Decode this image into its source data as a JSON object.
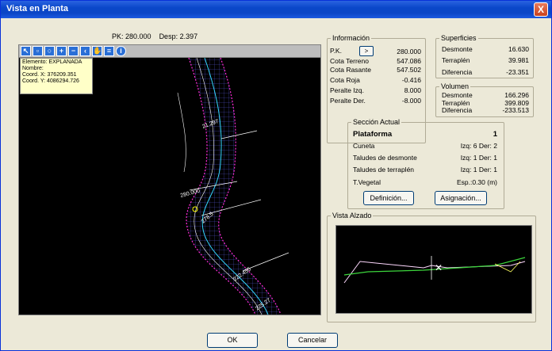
{
  "window": {
    "title": "Vista en Planta",
    "close": "X"
  },
  "header": {
    "pk_label": "PK: 280.000",
    "desp_label": "Desp: 2.397"
  },
  "toolbar_icons": [
    "pointer-icon",
    "zoom-window-icon",
    "zoom-all-icon",
    "zoom-in-icon",
    "zoom-out-icon",
    "zoom-previous-icon",
    "pan-icon",
    "layers-icon",
    "info-icon"
  ],
  "tooltip": {
    "lines": [
      "Elemento: EXPLANADA",
      "Nombre:",
      "Coord. X: 376209.351",
      "Coord. Y: 4086294.726"
    ]
  },
  "map_labels": [
    "21.297",
    "280.000",
    "278.5",
    "222.455",
    "225.27"
  ],
  "informacion": {
    "title": "Información",
    "pk_label": "P.K.",
    "pk_btn": ">",
    "pk_value": "280.000",
    "rows": [
      {
        "label": "Cota Terreno",
        "value": "547.086"
      },
      {
        "label": "Cota Rasante",
        "value": "547.502"
      },
      {
        "label": "Cota Roja",
        "value": "-0.416"
      },
      {
        "label": "Peralte Izq.",
        "value": "8.000"
      },
      {
        "label": "Peralte Der.",
        "value": "-8.000"
      }
    ]
  },
  "superficies": {
    "title": "Superficies",
    "rows": [
      {
        "label": "Desmonte",
        "value": "16.630"
      },
      {
        "label": "Terraplén",
        "value": "39.981"
      },
      {
        "label": "Diferencia",
        "value": "-23.351"
      }
    ]
  },
  "volumen": {
    "title": "Volumen",
    "rows": [
      {
        "label": "Desmonte",
        "value": "166.296"
      },
      {
        "label": "Terraplén",
        "value": "399.809"
      },
      {
        "label": "Diferencia",
        "value": "-233.513"
      }
    ]
  },
  "seccion": {
    "title": "Sección Actual",
    "plataforma_label": "Plataforma",
    "plataforma_value": "1",
    "rows": [
      {
        "label": "Cuneta",
        "value": "Izq: 6  Der: 2"
      },
      {
        "label": "Taludes de desmonte",
        "value": "Izq: 1  Der: 1"
      },
      {
        "label": "Taludes de  terraplén",
        "value": "Izq: 1  Der: 1"
      },
      {
        "label": "T.Vegetal",
        "value": "Esp.:0.30 (m)"
      }
    ],
    "definicion_btn": "Definición...",
    "asignacion_btn": "Asignación..."
  },
  "alzado": {
    "title": "Vista Alzado"
  },
  "footer": {
    "ok": "OK",
    "cancel": "Cancelar"
  },
  "colors": {
    "titlebar": "#0a47c9",
    "dialog_bg": "#ece9d8",
    "road_magenta": "#ff2bd6",
    "road_cyan": "#34d8ff",
    "tooltip_bg": "#ffffc8"
  }
}
